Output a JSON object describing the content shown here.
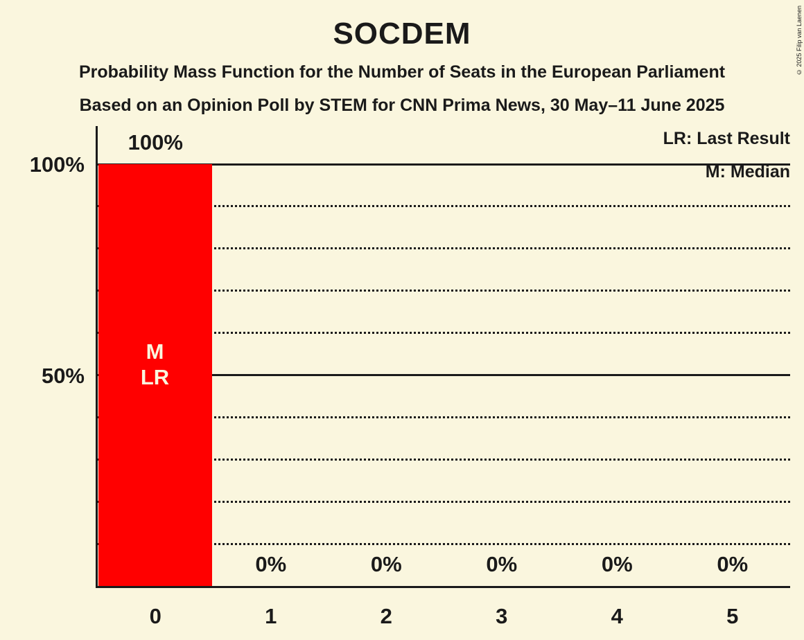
{
  "title": "SOCDEM",
  "subtitle1": "Probability Mass Function for the Number of Seats in the European Parliament",
  "subtitle2": "Based on an Opinion Poll by STEM for CNN Prima News, 30 May–11 June 2025",
  "copyright": "© 2025 Filip van Laenen",
  "legend": {
    "lr": "LR: Last Result",
    "m": "M: Median"
  },
  "y_axis": {
    "tick_100": "100%",
    "tick_50": "50%"
  },
  "chart_data": {
    "type": "bar",
    "categories": [
      "0",
      "1",
      "2",
      "3",
      "4",
      "5"
    ],
    "values": [
      100,
      0,
      0,
      0,
      0,
      0
    ],
    "bar_labels": [
      "100%",
      "0%",
      "0%",
      "0%",
      "0%",
      "0%"
    ],
    "annotations": [
      {
        "category": "0",
        "lines": [
          "M",
          "LR"
        ]
      }
    ],
    "title": "SOCDEM",
    "ylim": [
      0,
      100
    ],
    "gridlines": {
      "dotted_percents": [
        10,
        20,
        30,
        40,
        60,
        70,
        80,
        90
      ],
      "solid_percents": [
        50,
        100
      ]
    },
    "legend_position": "top-right",
    "colors": {
      "bar": "#ff0000",
      "background": "#faf6de",
      "text": "#1a1a1a",
      "bar_annotation_text": "#faf6de"
    }
  }
}
